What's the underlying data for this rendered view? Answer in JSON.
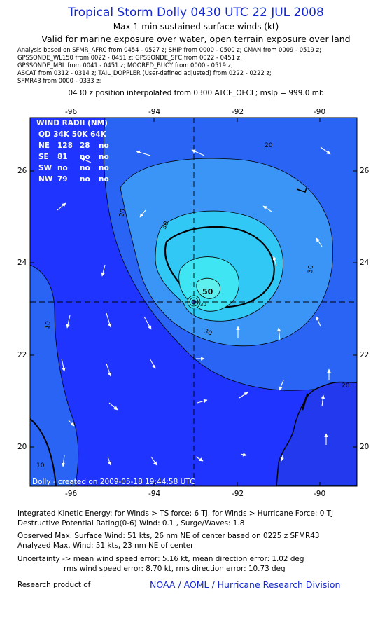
{
  "header": {
    "title": "Tropical Storm Dolly 0430 UTC 22 JUL 2008",
    "subtitle": "Max 1-min sustained surface winds (kt)",
    "validity": "Valid for marine exposure over water, open terrain exposure over land"
  },
  "analysis_sources": [
    "Analysis based on  SFMR_AFRC from 0454 - 0527 z;  SHIP from 0000 - 0500 z;  CMAN from 0009 - 0519 z;",
    "GPSSONDE_WL150 from 0022 - 0451 z;  GPSSONDE_SFC from 0022 - 0451 z;",
    "GPSSONDE_MBL from 0041 - 0451 z;  MOORED_BUOY from 0000 - 0519 z;",
    "ASCAT from 0312 - 0314 z;  TAIL_DOPPLER (User-defined adjusted) from 0222 - 0222 z;",
    "SFMR43 from 0000 - 0333 z;"
  ],
  "position_note": "0430 z position interpolated from 0300 ATCF_OFCL; mslp = 999.0 mb",
  "map": {
    "lon_ticks": [
      "-96",
      "-94",
      "-92",
      "-90"
    ],
    "lat_ticks": [
      "26",
      "24",
      "22",
      "20"
    ],
    "lon_range": [
      -97.0,
      -89.1
    ],
    "lat_range": [
      19.2,
      27.2
    ],
    "center": {
      "lon": -93.05,
      "lat": 23.15
    },
    "contour_labels": [
      "20",
      "20",
      "30",
      "30",
      "30",
      "30",
      "20",
      "10",
      "10",
      "50"
    ],
    "created_label": "Dolly - created on 2009-05-18 19:44:58 UTC",
    "colors": {
      "blue_outer": "#1f34ff",
      "blue_20": "#2a64f4",
      "blue_30": "#3b95f6",
      "cyan_34": "#31c8f5",
      "cyan_50": "#3fe5f2",
      "land": "#2239ee",
      "title_blue": "#1428d2"
    }
  },
  "wind_radii": {
    "title": "WIND RADII (NM)",
    "header": "QD  34K  50K  64K",
    "rows": [
      [
        "NE",
        "128",
        "28",
        "no"
      ],
      [
        "SE",
        "81",
        "no",
        "no"
      ],
      [
        "SW",
        "no",
        "no",
        "no"
      ],
      [
        "NW",
        "79",
        "no",
        "no"
      ]
    ]
  },
  "footer": {
    "ike": "Integrated Kinetic Energy:  for Winds > TS force: 6 TJ,  for Winds > Hurricane Force: 0 TJ",
    "dpr": "Destructive Potential Rating(0-6)   Wind: 0.1 , Surge/Waves: 1.8",
    "observed": "Observed Max. Surface Wind: 51 kts, 26 nm NE of center based on 0225 z SFMR43",
    "analyzed": "Analyzed Max. Wind: 51 kts, 23 nm NE of center",
    "uncertainty1": "Uncertainty -> mean wind speed error: 5.16 kt,   mean direction error: 1.02 deg",
    "uncertainty2": "rms wind speed error: 8.70 kt,   rms direction error: 10.73 deg",
    "research": "Research product of",
    "credit": "NOAA / AOML / Hurricane Research Division"
  }
}
